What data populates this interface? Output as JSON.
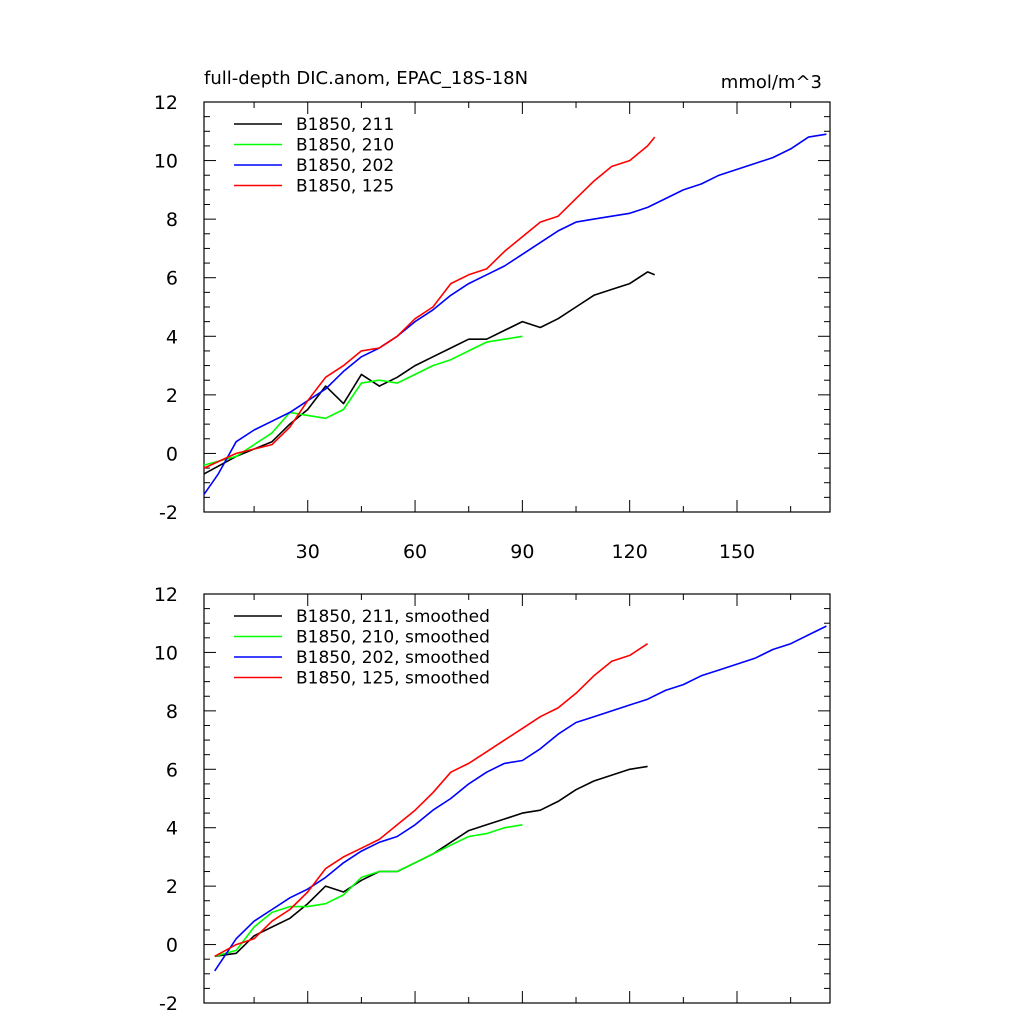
{
  "chart_data": [
    {
      "type": "line",
      "title": "full-depth DIC.anom, EPAC_18S-18N",
      "units": "mmol/m^3",
      "xlim": [
        1,
        176
      ],
      "ylim": [
        -2,
        12
      ],
      "x_ticks": [
        30,
        60,
        90,
        120,
        150
      ],
      "x_tick_labels": [
        "30",
        "60",
        "90",
        "120",
        "150"
      ],
      "y_ticks": [
        -2,
        0,
        2,
        4,
        6,
        8,
        10,
        12
      ],
      "y_tick_labels": [
        "-2",
        "0",
        "2",
        "4",
        "6",
        "8",
        "10",
        "12"
      ],
      "legend": [
        "B1850, 211",
        "B1850, 210",
        "B1850, 202",
        "B1850, 125"
      ],
      "legend_position": "top-left",
      "series": [
        {
          "name": "B1850, 211",
          "color": "#000000",
          "x": [
            1,
            10,
            20,
            25,
            30,
            35,
            40,
            45,
            50,
            55,
            60,
            65,
            70,
            75,
            80,
            85,
            90,
            95,
            100,
            105,
            110,
            115,
            120,
            125,
            127
          ],
          "values": [
            -0.7,
            -0.1,
            0.4,
            1.0,
            1.5,
            2.3,
            1.7,
            2.7,
            2.3,
            2.6,
            3.0,
            3.3,
            3.6,
            3.9,
            3.9,
            4.2,
            4.5,
            4.3,
            4.6,
            5.0,
            5.4,
            5.6,
            5.8,
            6.2,
            6.1
          ]
        },
        {
          "name": "B1850, 210",
          "color": "#00ff00",
          "x": [
            1,
            10,
            20,
            25,
            30,
            35,
            40,
            45,
            50,
            55,
            60,
            65,
            70,
            75,
            80,
            85,
            90
          ],
          "values": [
            -0.4,
            -0.1,
            0.7,
            1.4,
            1.3,
            1.2,
            1.5,
            2.4,
            2.5,
            2.4,
            2.7,
            3.0,
            3.2,
            3.5,
            3.8,
            3.9,
            4.0
          ]
        },
        {
          "name": "B1850, 202",
          "color": "#0000ff",
          "x": [
            1,
            5,
            10,
            15,
            20,
            25,
            30,
            35,
            40,
            45,
            50,
            55,
            60,
            65,
            70,
            75,
            80,
            85,
            90,
            95,
            100,
            105,
            110,
            115,
            120,
            125,
            130,
            135,
            140,
            145,
            150,
            155,
            160,
            165,
            170,
            175
          ],
          "values": [
            -1.4,
            -0.7,
            0.4,
            0.8,
            1.1,
            1.4,
            1.8,
            2.2,
            2.8,
            3.3,
            3.6,
            4.0,
            4.5,
            4.9,
            5.4,
            5.8,
            6.1,
            6.4,
            6.8,
            7.2,
            7.6,
            7.9,
            8.0,
            8.1,
            8.2,
            8.4,
            8.7,
            9.0,
            9.2,
            9.5,
            9.7,
            9.9,
            10.1,
            10.4,
            10.8,
            10.9
          ]
        },
        {
          "name": "B1850, 125",
          "color": "#ff0000",
          "x": [
            1,
            10,
            20,
            25,
            30,
            35,
            40,
            45,
            50,
            55,
            60,
            65,
            70,
            75,
            80,
            85,
            90,
            95,
            100,
            105,
            110,
            115,
            120,
            125,
            127
          ],
          "values": [
            -0.5,
            0.0,
            0.3,
            0.9,
            1.8,
            2.6,
            3.0,
            3.5,
            3.6,
            4.0,
            4.6,
            5.0,
            5.8,
            6.1,
            6.3,
            6.9,
            7.4,
            7.9,
            8.1,
            8.7,
            9.3,
            9.8,
            10.0,
            10.5,
            10.8
          ]
        }
      ]
    },
    {
      "type": "line",
      "title": "",
      "xlim": [
        1,
        176
      ],
      "ylim": [
        -2,
        12
      ],
      "x_ticks": [
        30,
        60,
        90,
        120,
        150
      ],
      "y_ticks": [
        -2,
        0,
        2,
        4,
        6,
        8,
        10,
        12
      ],
      "y_tick_labels": [
        "-2",
        "0",
        "2",
        "4",
        "6",
        "8",
        "10",
        "12"
      ],
      "legend": [
        "B1850, 211, smoothed",
        "B1850, 210, smoothed",
        "B1850, 202, smoothed",
        "B1850, 125, smoothed"
      ],
      "legend_position": "top-left",
      "series": [
        {
          "name": "B1850, 211, smoothed",
          "color": "#000000",
          "x": [
            4,
            10,
            15,
            20,
            25,
            30,
            35,
            40,
            45,
            50,
            55,
            60,
            65,
            70,
            75,
            80,
            85,
            90,
            95,
            100,
            105,
            110,
            115,
            120,
            125
          ],
          "values": [
            -0.4,
            -0.3,
            0.3,
            0.6,
            0.9,
            1.4,
            2.0,
            1.8,
            2.2,
            2.5,
            2.5,
            2.8,
            3.1,
            3.5,
            3.9,
            4.1,
            4.3,
            4.5,
            4.6,
            4.9,
            5.3,
            5.6,
            5.8,
            6.0,
            6.1
          ]
        },
        {
          "name": "B1850, 210, smoothed",
          "color": "#00ff00",
          "x": [
            4,
            10,
            15,
            20,
            25,
            30,
            35,
            40,
            45,
            50,
            55,
            60,
            65,
            70,
            75,
            80,
            85,
            90
          ],
          "values": [
            -0.4,
            -0.2,
            0.6,
            1.1,
            1.3,
            1.3,
            1.4,
            1.7,
            2.3,
            2.5,
            2.5,
            2.8,
            3.1,
            3.4,
            3.7,
            3.8,
            4.0,
            4.1
          ]
        },
        {
          "name": "B1850, 202, smoothed",
          "color": "#0000ff",
          "x": [
            4,
            10,
            15,
            20,
            25,
            30,
            35,
            40,
            45,
            50,
            55,
            60,
            65,
            70,
            75,
            80,
            85,
            90,
            95,
            100,
            105,
            110,
            115,
            120,
            125,
            130,
            135,
            140,
            145,
            150,
            155,
            160,
            165,
            170,
            175
          ],
          "values": [
            -0.9,
            0.2,
            0.8,
            1.2,
            1.6,
            1.9,
            2.3,
            2.8,
            3.2,
            3.5,
            3.7,
            4.1,
            4.6,
            5.0,
            5.5,
            5.9,
            6.2,
            6.3,
            6.7,
            7.2,
            7.6,
            7.8,
            8.0,
            8.2,
            8.4,
            8.7,
            8.9,
            9.2,
            9.4,
            9.6,
            9.8,
            10.1,
            10.3,
            10.6,
            10.9
          ]
        },
        {
          "name": "B1850, 125, smoothed",
          "color": "#ff0000",
          "x": [
            4,
            10,
            15,
            20,
            25,
            30,
            35,
            40,
            45,
            50,
            55,
            60,
            65,
            70,
            75,
            80,
            85,
            90,
            95,
            100,
            105,
            110,
            115,
            120,
            125
          ],
          "values": [
            -0.4,
            0.0,
            0.2,
            0.8,
            1.2,
            1.8,
            2.6,
            3.0,
            3.3,
            3.6,
            4.1,
            4.6,
            5.2,
            5.9,
            6.2,
            6.6,
            7.0,
            7.4,
            7.8,
            8.1,
            8.6,
            9.2,
            9.7,
            9.9,
            10.3
          ]
        }
      ]
    }
  ]
}
